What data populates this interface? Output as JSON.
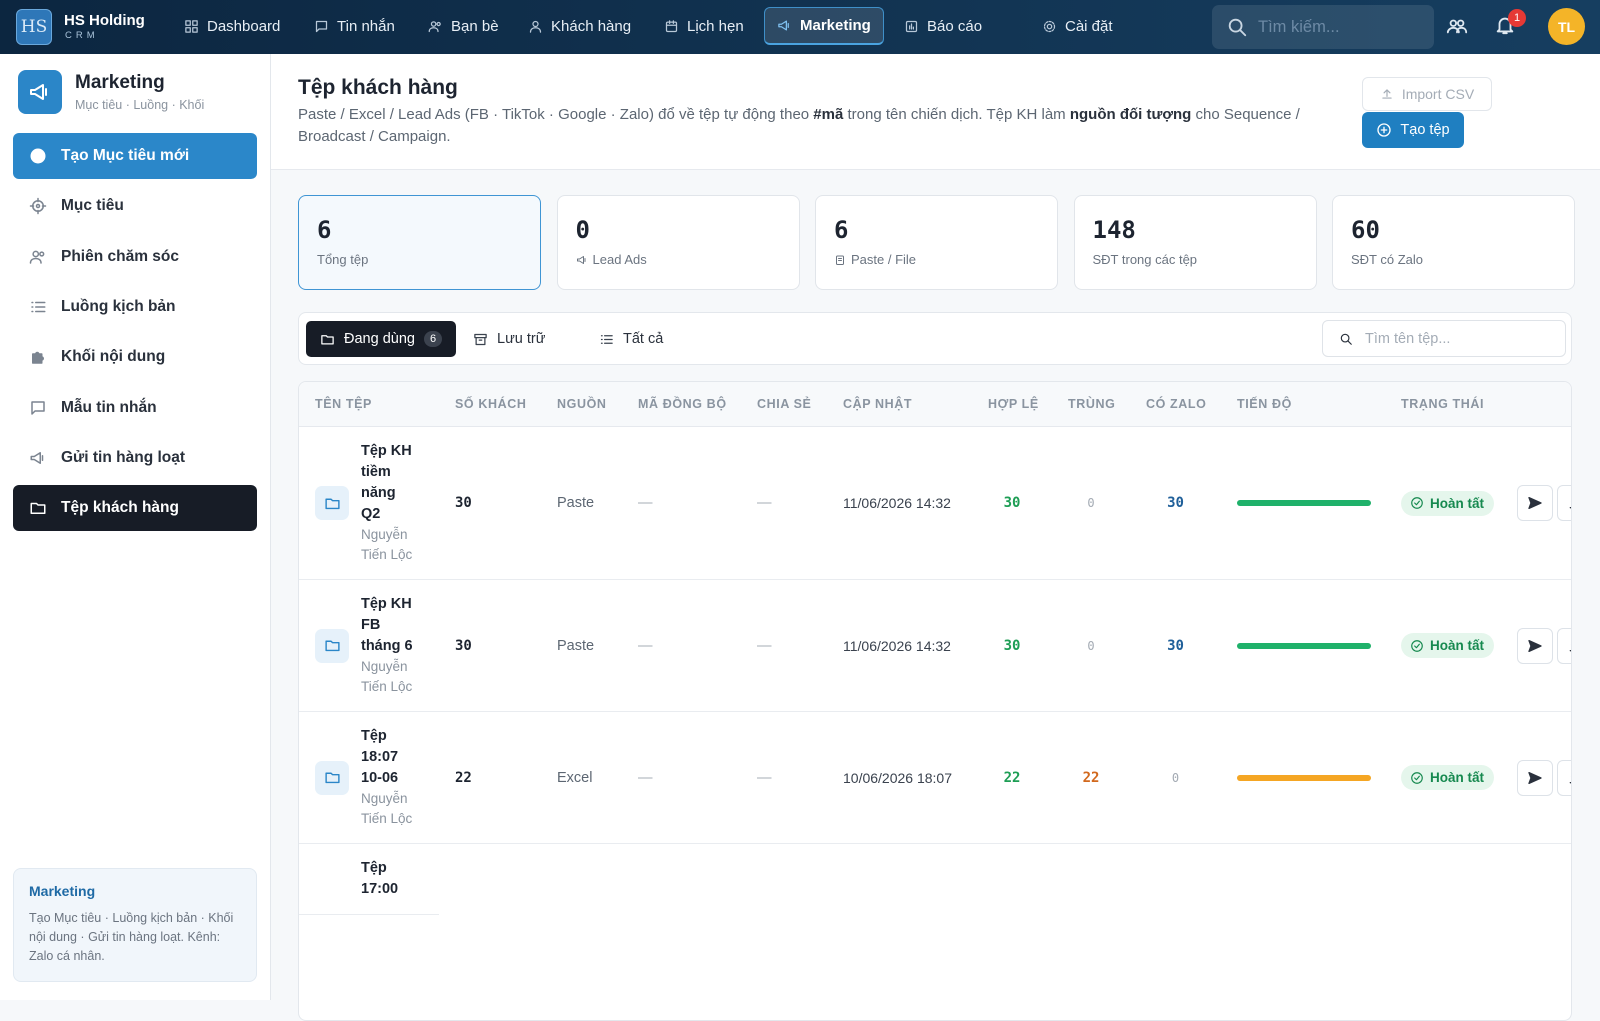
{
  "header": {
    "logo": "HS",
    "brand": "HS Holding",
    "brand_sub": "CRM",
    "nav": [
      "Dashboard",
      "Tin nhắn",
      "Bạn bè",
      "Khách hàng",
      "Lịch hẹn",
      "Marketing",
      "Báo cáo",
      "Cài đặt"
    ],
    "active_nav": 5,
    "search_placeholder": "Tìm kiếm...",
    "notifications": 1,
    "avatar": "TL"
  },
  "sidebar": {
    "title": "Marketing",
    "subtitle": "Mục tiêu · Luồng · Khối",
    "items": [
      "Tạo Mục tiêu mới",
      "Mục tiêu",
      "Phiên chăm sóc",
      "Luồng kịch bản",
      "Khối nội dung",
      "Mẫu tin nhắn",
      "Gửi tin hàng loạt",
      "Tệp khách hàng"
    ],
    "active_item": 7,
    "footer": {
      "title": "Marketing",
      "text": "Tạo Mục tiêu · Luồng kịch bản · Khối nội dung · Gửi tin hàng loạt. Kênh: Zalo cá nhân."
    }
  },
  "page": {
    "title": "Tệp khách hàng",
    "description": [
      {
        "text": "Paste / Excel / Lead Ads (FB · TikTok · Google · Zalo) đổ về tệp tự động theo ",
        "bold": false
      },
      {
        "text": "#mã",
        "bold": true
      },
      {
        "text": " trong tên chiến dịch. Tệp KH làm ",
        "bold": false
      },
      {
        "text": "nguồn đối tượng",
        "bold": true
      },
      {
        "text": " cho Sequence / Broadcast / Campaign.",
        "bold": false
      }
    ],
    "import_button": "Import CSV",
    "create_button": "Tạo tệp"
  },
  "stats": [
    {
      "value": 6,
      "label": "Tổng tệp"
    },
    {
      "value": 0,
      "label": "Lead Ads"
    },
    {
      "value": 6,
      "label": "Paste / File"
    },
    {
      "value": 148,
      "label": "SĐT trong các tệp"
    },
    {
      "value": 60,
      "label": "SĐT có Zalo"
    }
  ],
  "tabs": [
    {
      "label": "Đang dùng",
      "count": 6
    },
    {
      "label": "Lưu trữ"
    },
    {
      "label": "Tất cả"
    }
  ],
  "active_tab": 0,
  "file_search_placeholder": "Tìm tên tệp...",
  "table": {
    "columns": [
      "TÊN TỆP",
      "SỐ KHÁCH",
      "NGUỒN",
      "MÃ ĐỒNG BỘ",
      "CHIA SẺ",
      "CẬP NHẬT",
      "HỢP LỆ",
      "TRÙNG",
      "CÓ ZALO",
      "TIẾN ĐỘ",
      "TRẠNG THÁI"
    ],
    "rows": [
      {
        "name": "Tệp KH tiềm năng Q2",
        "owner": "Nguyễn Tiến Lộc",
        "customers": 30,
        "source": "Paste",
        "sync_code": "—",
        "shared": "—",
        "updated": "11/06/2026 14:32",
        "valid": 30,
        "duplicate": 0,
        "zalo": 30,
        "progress": 100,
        "progress_color": "#1fb16a",
        "status": "Hoàn tất"
      },
      {
        "name": "Tệp KH FB tháng 6",
        "owner": "Nguyễn Tiến Lộc",
        "customers": 30,
        "source": "Paste",
        "sync_code": "—",
        "shared": "—",
        "updated": "11/06/2026 14:32",
        "valid": 30,
        "duplicate": 0,
        "zalo": 30,
        "progress": 100,
        "progress_color": "#1fb16a",
        "status": "Hoàn tất"
      },
      {
        "name": "Tệp 18:07 10-06",
        "owner": "Nguyễn Tiến Lộc",
        "customers": 22,
        "source": "Excel",
        "sync_code": "—",
        "shared": "—",
        "updated": "10/06/2026 18:07",
        "valid": 22,
        "duplicate": 22,
        "zalo": 0,
        "progress": 100,
        "progress_color": "#f5a623",
        "status": "Hoàn tất"
      },
      {
        "name": "Tệp 17:00"
      }
    ]
  }
}
